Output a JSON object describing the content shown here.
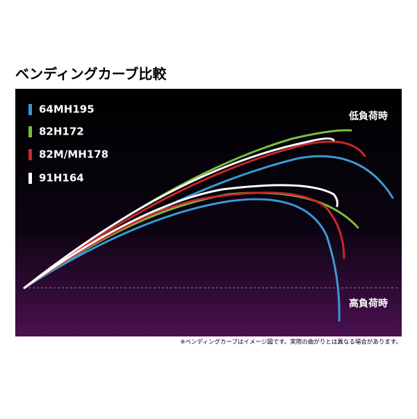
{
  "header": {
    "title": "ベンディングカーブ比較"
  },
  "legend": [
    {
      "name": "64MH195",
      "color": "#3a9ad6"
    },
    {
      "name": "82H172",
      "color": "#7cbf3c"
    },
    {
      "name": "82M/MH178",
      "color": "#c8282c"
    },
    {
      "name": "91H164",
      "color": "#ffffff"
    }
  ],
  "labels": {
    "low": "低負荷時",
    "high": "高負荷時"
  },
  "footnote": "※ベンディングカーブはイメージ図です。実際の曲がりとは異なる場合があります。"
}
